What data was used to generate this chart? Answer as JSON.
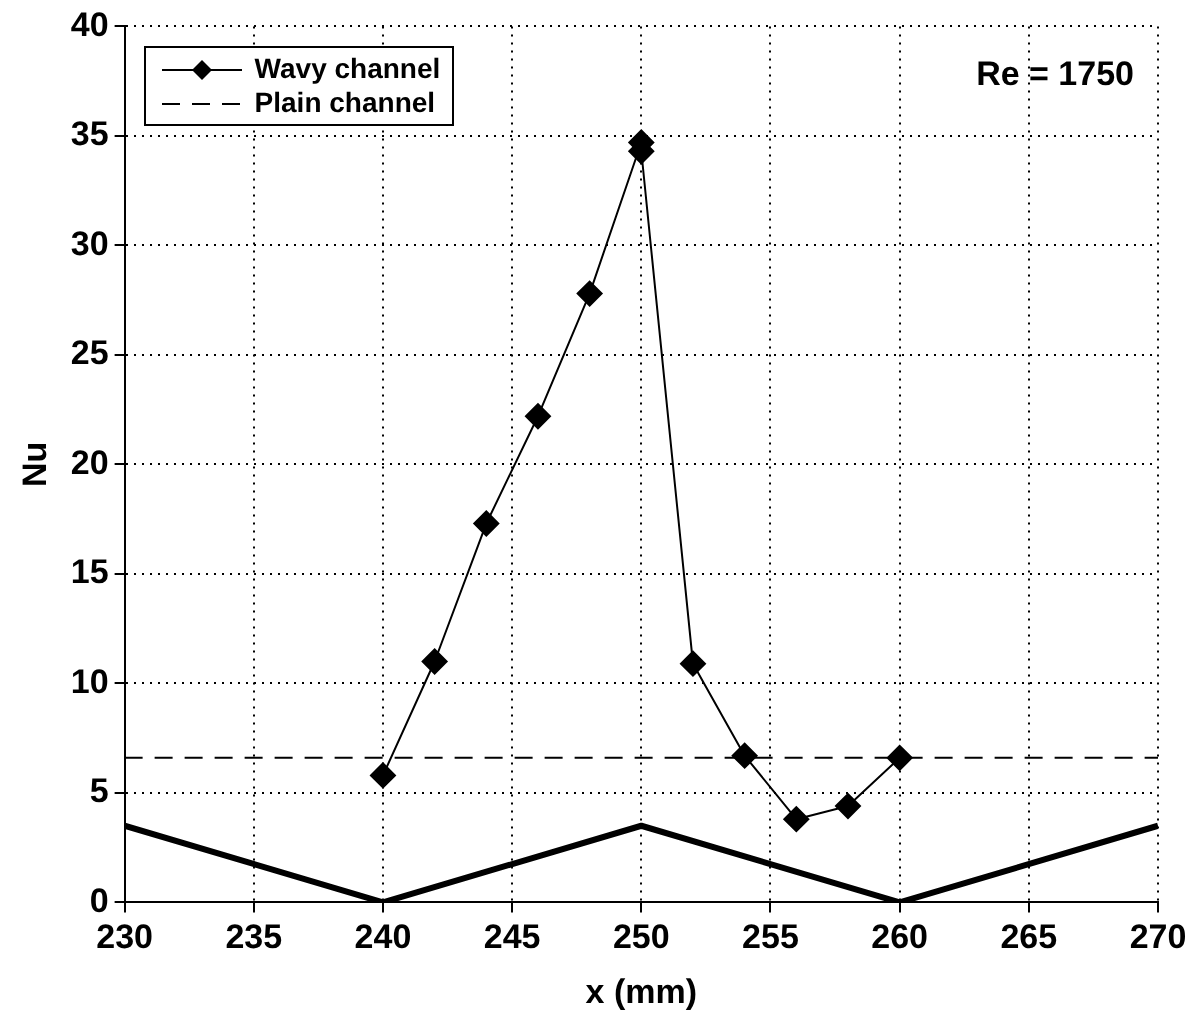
{
  "chart_data": {
    "type": "line",
    "xlabel": "x (mm)",
    "ylabel": "Nu",
    "xlim": [
      230,
      270
    ],
    "xticks": [
      230,
      235,
      240,
      245,
      250,
      255,
      260,
      265,
      270
    ],
    "ylim": [
      0,
      40
    ],
    "yticks": [
      0,
      5,
      10,
      15,
      20,
      25,
      30,
      35,
      40
    ],
    "grid": true,
    "legend": "top left",
    "annotations": [
      "Re = 1750"
    ],
    "series": [
      {
        "name": "Wavy channel",
        "color": "#000000",
        "marker": "diamond",
        "line_style": "solid",
        "x": [
          240,
          242,
          244,
          246,
          248,
          250,
          250,
          252,
          254,
          256,
          258,
          260
        ],
        "values": [
          5.8,
          11.0,
          17.3,
          22.2,
          27.8,
          34.7,
          34.3,
          10.9,
          6.7,
          3.8,
          4.4,
          6.6
        ]
      },
      {
        "name": "Plain channel",
        "color": "#000000",
        "marker": "none",
        "line_style": "dashed",
        "x": [
          230,
          270
        ],
        "values": [
          6.6,
          6.6
        ]
      },
      {
        "color": "#000000",
        "marker": "none",
        "line_style": "solid",
        "x": [
          230,
          240,
          250,
          260,
          270
        ],
        "values": [
          3.5,
          0,
          3.5,
          0,
          3.5
        ]
      }
    ]
  }
}
